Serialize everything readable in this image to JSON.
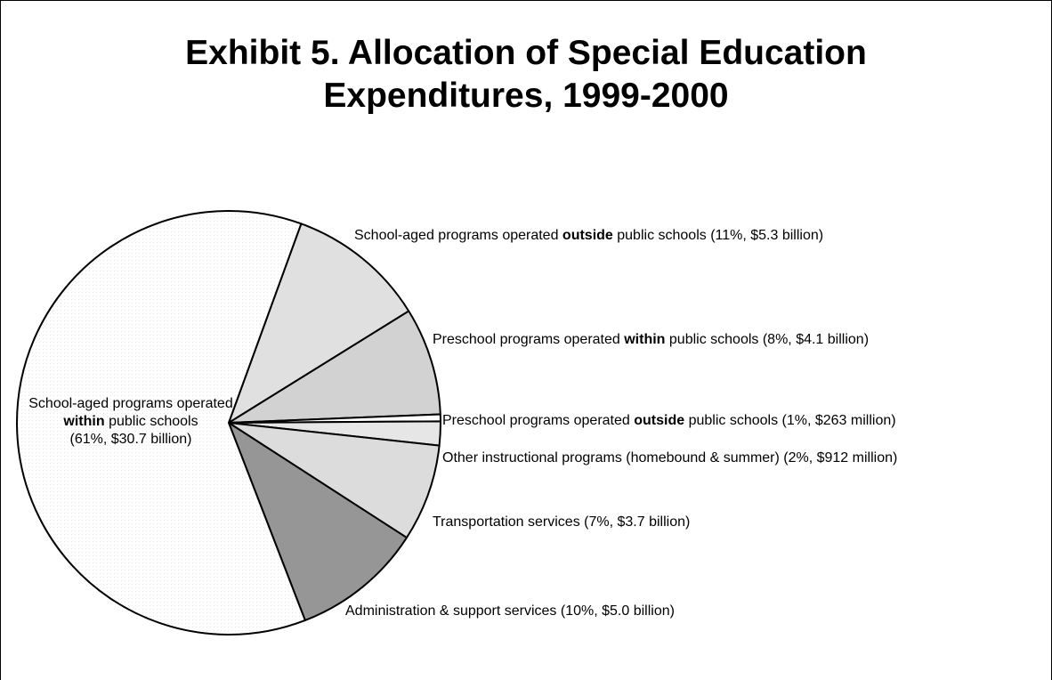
{
  "chart_data": {
    "type": "pie",
    "title_lines": [
      "Exhibit 5. Allocation of Special Education",
      "Expenditures, 1999-2000"
    ],
    "slices": [
      {
        "pre": "School-aged programs operated ",
        "bold": "outside",
        "post": " public schools (11%, $5.3 billion)",
        "percent": 11,
        "value_billion": 5.3,
        "color": "#e0e0e0"
      },
      {
        "pre": "Preschool programs operated ",
        "bold": "within",
        "post": " public schools (8%, $4.1 billion)",
        "percent": 8,
        "value_billion": 4.1,
        "color": "#d2d2d2"
      },
      {
        "pre": "Preschool programs operated ",
        "bold": "outside",
        "post": " public schools (1%, $263 million)",
        "percent": 1,
        "value_billion": 0.263,
        "color": "#ffffff"
      },
      {
        "pre": "Other instructional programs (homebound & summer) (2%, $912 million)",
        "bold": "",
        "post": "",
        "percent": 2,
        "value_billion": 0.912,
        "color": "#e6e6e6"
      },
      {
        "pre": "Transportation services (7%, $3.7 billion)",
        "bold": "",
        "post": "",
        "percent": 7,
        "value_billion": 3.7,
        "color": "#dcdcdc"
      },
      {
        "pre": "Administration & support services (10%, $5.0 billion)",
        "bold": "",
        "post": "",
        "percent": 10,
        "value_billion": 5.0,
        "color": "#969696"
      },
      {
        "pre": "School-aged programs operated",
        "bold": "within",
        "post": "public schools",
        "extra": "(61%, $30.7 billion)",
        "percent": 61,
        "value_billion": 30.7,
        "color": "#f4f4f4"
      }
    ]
  }
}
